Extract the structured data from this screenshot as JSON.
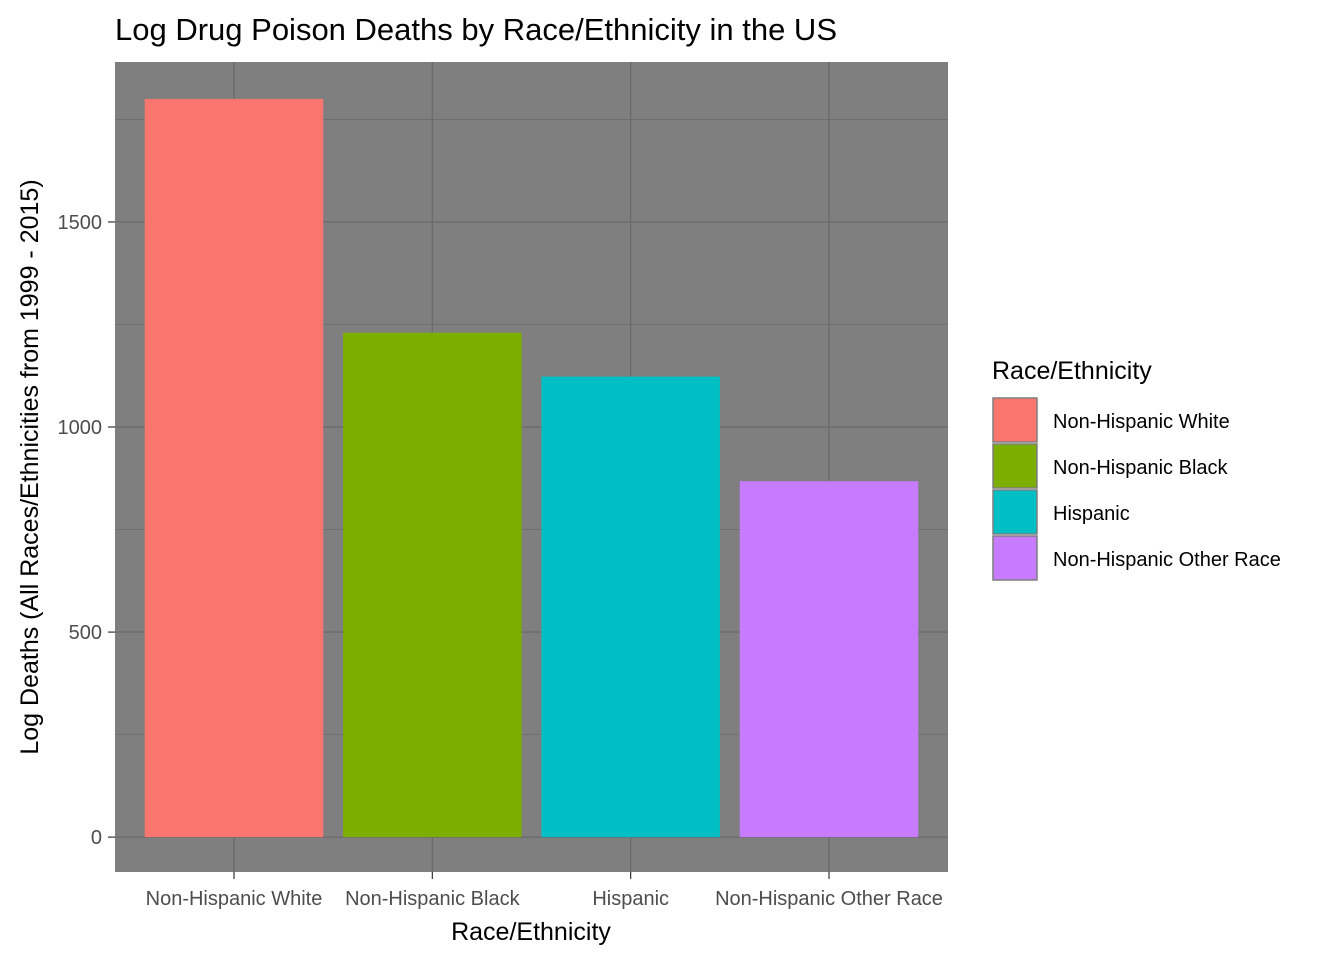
{
  "chart_data": {
    "type": "bar",
    "title": "Log Drug Poison Deaths by Race/Ethnicity in the US",
    "xlabel": "Race/Ethnicity",
    "ylabel": "Log Deaths (All Races/Ethnicities from 1999 - 2015)",
    "categories": [
      "Non-Hispanic White",
      "Non-Hispanic Black",
      "Hispanic",
      "Non-Hispanic Other Race"
    ],
    "values": [
      1800,
      1230,
      1123,
      868
    ],
    "ylim": [
      -85,
      1890
    ],
    "y_ticks": [
      0,
      500,
      1000,
      1500
    ],
    "y_tick_labels": [
      "0",
      "500",
      "1000",
      "1500"
    ],
    "colors": [
      "#F8766D",
      "#7CAE00",
      "#00BFC4",
      "#C77CFF"
    ],
    "panel_background": "#7f7f7f",
    "grid": true,
    "legend": {
      "title": "Race/Ethnicity",
      "position": "right",
      "entries": [
        "Non-Hispanic White",
        "Non-Hispanic Black",
        "Hispanic",
        "Non-Hispanic Other Race"
      ]
    }
  }
}
